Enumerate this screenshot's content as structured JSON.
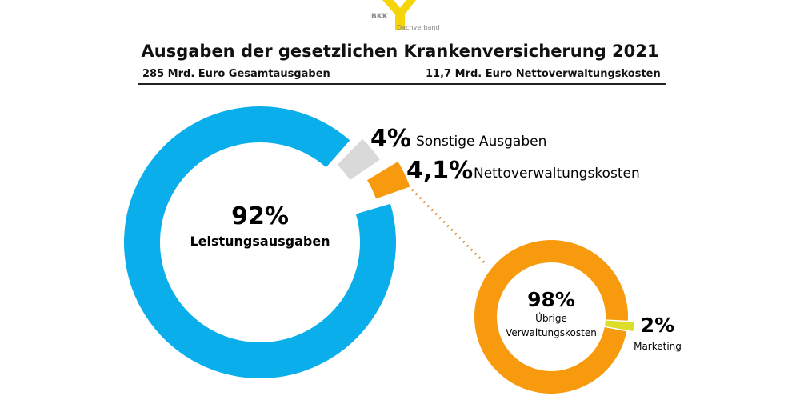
{
  "logo": {
    "text": "BKK",
    "subtitle": "Dachverband"
  },
  "header": {
    "title": "Ausgaben der gesetzlichen Krankenversicherung 2021",
    "subtitle_left": "285 Mrd. Euro Gesamtausgaben",
    "subtitle_right": "11,7 Mrd. Euro Nettoverwaltungskosten"
  },
  "colors": {
    "blue": "#0aaeea",
    "gray": "#d9d9d9",
    "orange": "#f89a0e",
    "yellow": "#dede2a"
  },
  "chart_data": [
    {
      "type": "pie",
      "title": "Gesamtausgaben",
      "slices": [
        {
          "label": "Leistungsausgaben",
          "value": 92,
          "display": "92%",
          "color": "#0aaeea"
        },
        {
          "label": "Sonstige Ausgaben",
          "value": 4,
          "display": "4%",
          "color": "#d9d9d9"
        },
        {
          "label": "Nettoverwaltungskosten",
          "value": 4.1,
          "display": "4,1%",
          "color": "#f89a0e"
        }
      ]
    },
    {
      "type": "pie",
      "title": "Nettoverwaltungskosten",
      "slices": [
        {
          "label": "Übrige Verwaltungskosten",
          "value": 98,
          "display": "98%",
          "color": "#f89a0e"
        },
        {
          "label": "Marketing",
          "value": 2,
          "display": "2%",
          "color": "#dede2a"
        }
      ]
    }
  ]
}
